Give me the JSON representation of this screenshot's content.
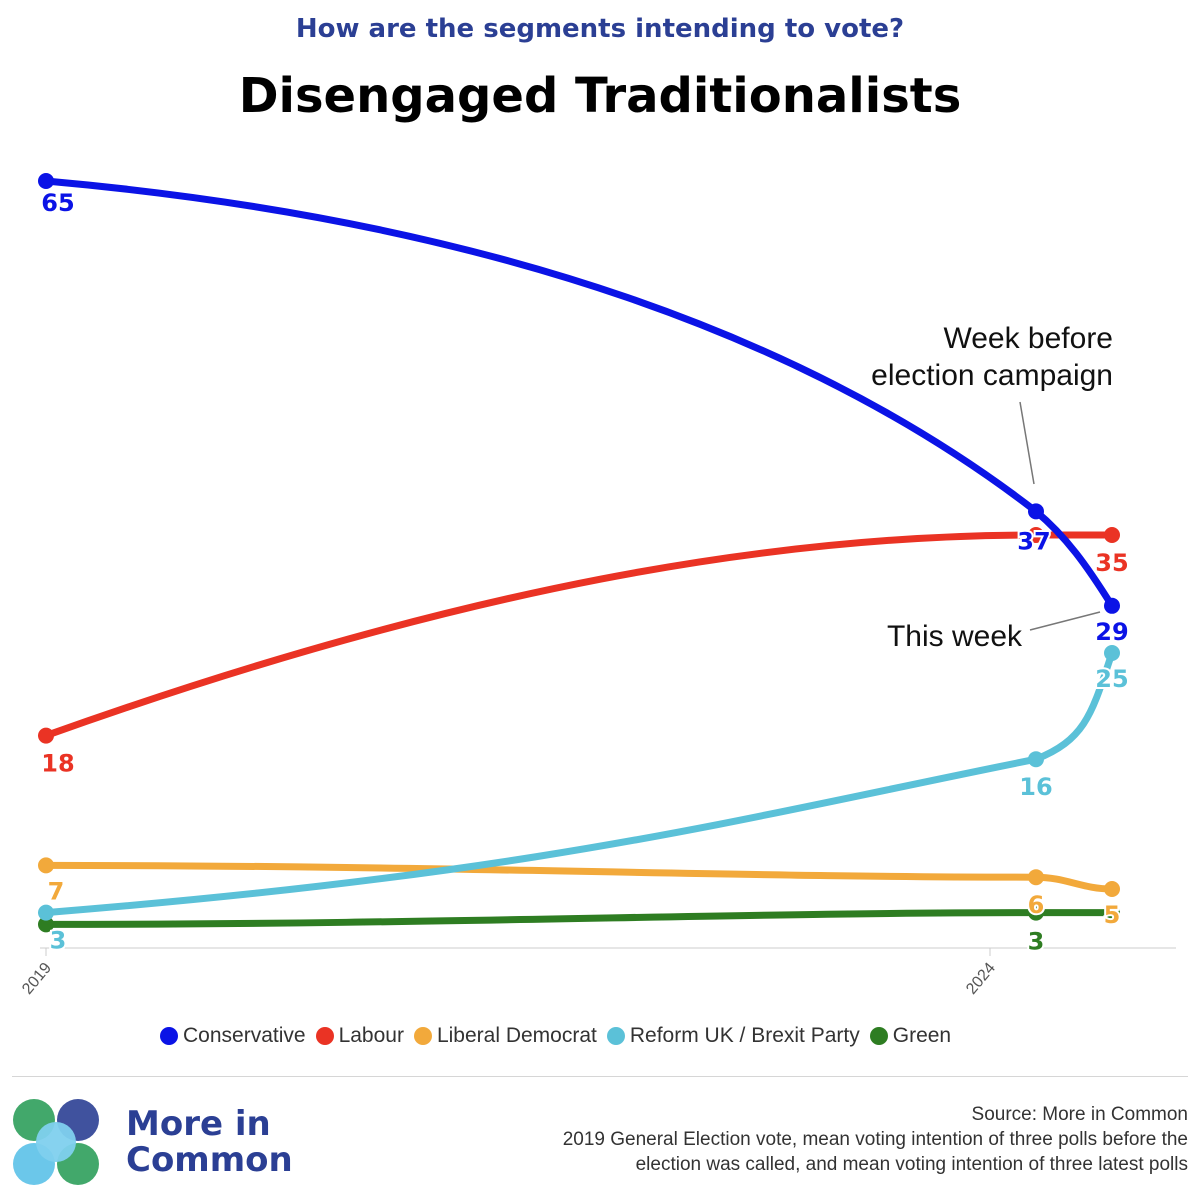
{
  "header": {
    "subtitle": "How are the segments intending to vote?",
    "title": "Disengaged Traditionalists"
  },
  "chart_data": {
    "type": "line",
    "x_ticks": [
      "2019",
      "2024"
    ],
    "annotations": {
      "week_before": [
        "Week before",
        "election campaign"
      ],
      "this_week": "This week"
    },
    "series": [
      {
        "name": "Conservative",
        "color": "#0b13e6",
        "values": [
          65,
          37,
          29
        ],
        "labels": [
          "65",
          "37",
          "29"
        ]
      },
      {
        "name": "Labour",
        "color": "#ea3324",
        "values": [
          18,
          35,
          35
        ],
        "labels": [
          "18",
          "",
          "35"
        ]
      },
      {
        "name": "Liberal Democrat",
        "color": "#f2a93b",
        "values": [
          7,
          6,
          5
        ],
        "labels": [
          "7",
          "6",
          "5"
        ]
      },
      {
        "name": "Reform UK / Brexit Party",
        "color": "#5bc1d8",
        "values": [
          3,
          16,
          25
        ],
        "labels": [
          "3",
          "16",
          "25"
        ]
      },
      {
        "name": "Green",
        "color": "#2e7d22",
        "values": [
          2,
          3,
          3
        ],
        "labels": [
          "",
          "3",
          ""
        ]
      }
    ]
  },
  "legend": {
    "items": [
      {
        "label": "Conservative",
        "color": "#0b13e6"
      },
      {
        "label": "Labour",
        "color": "#ea3324"
      },
      {
        "label": "Liberal Democrat",
        "color": "#f2a93b"
      },
      {
        "label": "Reform UK / Brexit Party",
        "color": "#5bc1d8"
      },
      {
        "label": "Green",
        "color": "#2e7d22"
      }
    ]
  },
  "footer": {
    "brand_line1": "More in",
    "brand_line2": "Common",
    "source": "Source: More in Common",
    "note_line1": "2019 General Election vote, mean voting intention of three polls before the",
    "note_line2": "election was called, and mean voting intention of three latest polls"
  }
}
